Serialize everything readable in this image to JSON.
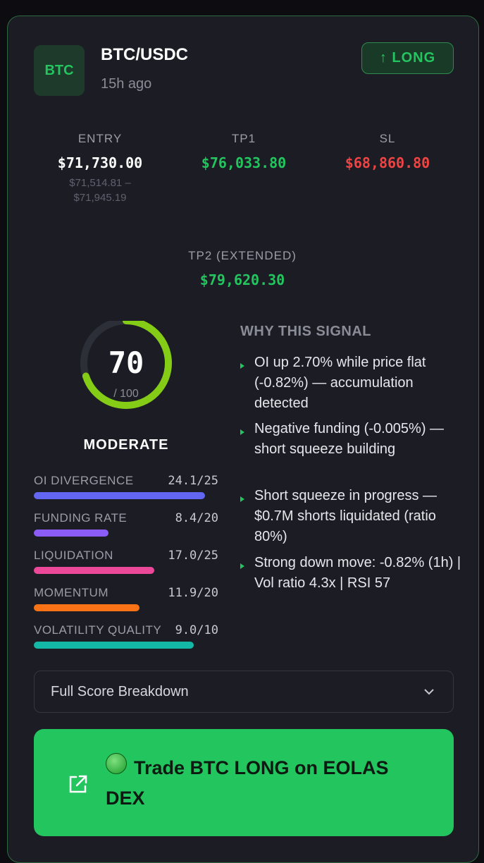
{
  "header": {
    "badge": "BTC",
    "pair": "BTC/USDC",
    "time": "15h ago",
    "direction": "↑ LONG"
  },
  "levels": {
    "entry": {
      "label": "ENTRY",
      "value": "$71,730.00",
      "range": "$71,514.81 – $71,945.19"
    },
    "tp1": {
      "label": "TP1",
      "value": "$76,033.80"
    },
    "sl": {
      "label": "SL",
      "value": "$68,860.80"
    },
    "tp2": {
      "label": "TP2 (EXTENDED)",
      "value": "$79,620.30"
    }
  },
  "score": {
    "value": 70,
    "max": 100,
    "max_label": "/ 100",
    "rating": "MODERATE",
    "components": [
      {
        "name": "OI DIVERGENCE",
        "value": 24.1,
        "max": 25,
        "value_label": "24.1/25",
        "color": "#6366f1"
      },
      {
        "name": "FUNDING RATE",
        "value": 8.4,
        "max": 20,
        "value_label": "8.4/20",
        "color": "#8b5cf6"
      },
      {
        "name": "LIQUIDATION",
        "value": 17.0,
        "max": 25,
        "value_label": "17.0/25",
        "color": "#ec4899"
      },
      {
        "name": "MOMENTUM",
        "value": 11.9,
        "max": 20,
        "value_label": "11.9/20",
        "color": "#f97316"
      },
      {
        "name": "VOLATILITY QUALITY",
        "value": 9.0,
        "max": 10,
        "value_label": "9.0/10",
        "color": "#14b8a6"
      }
    ]
  },
  "reasons": {
    "title": "WHY THIS SIGNAL",
    "items": [
      "OI up 2.70% while price flat (-0.82%) — accumulation detected",
      "Negative funding (-0.005%) — short squeeze building",
      "Short squeeze in progress — $0.7M shorts liquidated (ratio 80%)",
      "Strong down move: -0.82% (1h) | Vol ratio 4.3x | RSI 57"
    ]
  },
  "breakdown": "Full Score Breakdown",
  "cta": "Trade BTC LONG on EOLAS DEX"
}
